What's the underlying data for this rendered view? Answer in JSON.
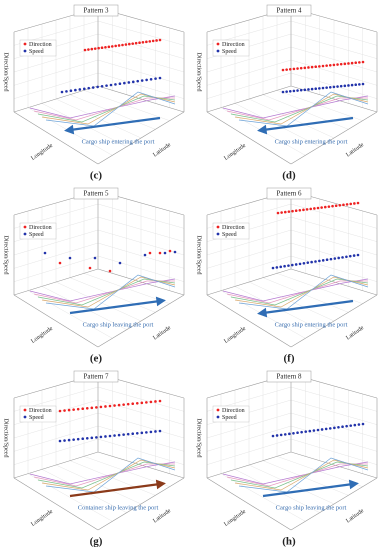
{
  "panels": [
    {
      "title": "Pattern 3",
      "legend": [
        "Direction",
        "Speed"
      ],
      "y_label": "Direction/Speed",
      "x_label": "Longitude",
      "z_label": "Latitude",
      "annotation": "Cargo ship entering the port",
      "label": "(c)"
    },
    {
      "title": "Pattern 4",
      "legend": [
        "Direction",
        "Speed"
      ],
      "y_label": "Direction/Speed",
      "x_label": "Longitude",
      "z_label": "Latitude",
      "annotation": "Cargo ship entering the port",
      "label": "(d)"
    },
    {
      "title": "Pattern 5",
      "legend": [
        "Direction",
        "Speed"
      ],
      "y_label": "Direction/Speed",
      "x_label": "Longitude",
      "z_label": "Latitude",
      "annotation": "Cargo ship leaving the port",
      "label": "(e)"
    },
    {
      "title": "Pattern 6",
      "legend": [
        "Direction",
        "Speed"
      ],
      "y_label": "Direction/Speed",
      "x_label": "Longitude",
      "z_label": "Latitude",
      "annotation": "Cargo ship entering the port",
      "label": "(f)"
    },
    {
      "title": "Pattern 7",
      "legend": [
        "Direction",
        "Speed"
      ],
      "y_label": "Direction/Speed",
      "x_label": "Longitude",
      "z_label": "Latitude",
      "annotation": "Container ship leaving the port",
      "label": "(g)"
    },
    {
      "title": "Pattern 8",
      "legend": [
        "Direction",
        "Speed"
      ],
      "y_label": "Direction/Speed",
      "x_label": "Longitude",
      "z_label": "Latitude",
      "annotation": "Cargo ship leaving the port",
      "label": "(h)"
    }
  ]
}
